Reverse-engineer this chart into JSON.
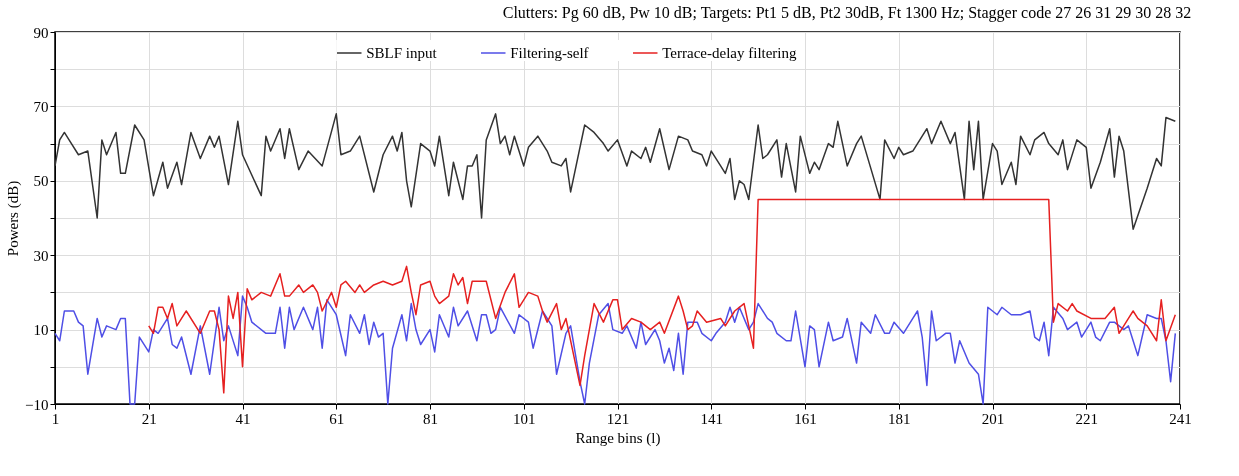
{
  "chart_data": {
    "type": "line",
    "title": "Clutters: Pg 60 dB, Pw 10 dB; Targets: Pt1 5 dB, Pt2 30dB, Ft 1300 Hz; Stagger code 27 26 31 29 30 28 32",
    "xlabel": "Range bins (l)",
    "ylabel": "Powers (dB)",
    "xlim": [
      1,
      241
    ],
    "xticks": [
      1,
      21,
      41,
      61,
      81,
      101,
      121,
      141,
      161,
      181,
      201,
      221,
      241
    ],
    "ylim": [
      -10,
      90
    ],
    "yticks": [
      -10,
      {
        "value": 0,
        "label": null
      },
      10,
      {
        "value": 20,
        "label": null
      },
      30,
      {
        "value": 40,
        "label": null
      },
      50,
      {
        "value": 60,
        "label": null
      },
      70,
      {
        "value": 80,
        "label": null
      },
      90
    ],
    "grid": true,
    "legend": "top",
    "line_style": "solid",
    "marker": "none",
    "series": [
      {
        "name": "SBLF input",
        "color": "#333333",
        "x": [
          1,
          2,
          3,
          4,
          6,
          8,
          10,
          11,
          12,
          14,
          15,
          16,
          18,
          20,
          22,
          24,
          25,
          27,
          28,
          30,
          32,
          34,
          35,
          36,
          38,
          40,
          41,
          45,
          46,
          47,
          49,
          50,
          51,
          53,
          55,
          58,
          61,
          62,
          64,
          66,
          69,
          71,
          73,
          74,
          75,
          76,
          77,
          79,
          81,
          82,
          83,
          85,
          86,
          88,
          89,
          90,
          91,
          92,
          93,
          95,
          96,
          97,
          98,
          99,
          101,
          102,
          104,
          106,
          107,
          109,
          110,
          111,
          114,
          116,
          118,
          119,
          121,
          123,
          124,
          126,
          127,
          128,
          130,
          132,
          134,
          136,
          137,
          139,
          140,
          141,
          143,
          144,
          145,
          146,
          147,
          148,
          149,
          151,
          152,
          153,
          155,
          156,
          157,
          159,
          160,
          162,
          163,
          164,
          166,
          167,
          168,
          170,
          172,
          173,
          177,
          178,
          180,
          181,
          182,
          184,
          186,
          187,
          188,
          190,
          192,
          193,
          195,
          196,
          197,
          198,
          199,
          201,
          202,
          203,
          205,
          206,
          207,
          209,
          210,
          212,
          213,
          215,
          216,
          217,
          219,
          221,
          222,
          224,
          226,
          227,
          228,
          229,
          231,
          234,
          236,
          237,
          238,
          240
        ],
        "values": [
          54,
          61,
          63,
          61,
          57,
          58,
          40,
          61,
          57,
          63,
          52,
          52,
          65,
          61,
          46,
          55,
          48,
          55,
          49,
          63,
          56,
          62,
          59,
          62,
          49,
          66,
          57,
          46,
          62,
          58,
          64,
          56,
          64,
          53,
          58,
          54,
          68,
          57,
          58,
          62,
          47,
          57,
          62,
          58,
          63,
          50,
          43,
          60,
          58,
          54,
          62,
          46,
          55,
          45,
          54,
          54,
          57,
          40,
          61,
          68,
          60,
          62,
          57,
          62,
          54,
          59,
          62,
          58,
          55,
          54,
          56,
          47,
          65,
          63,
          60,
          58,
          61,
          54,
          58,
          56,
          59,
          55,
          64,
          53,
          62,
          61,
          58,
          57,
          54,
          58,
          54,
          52,
          56,
          45,
          50,
          49,
          45,
          65,
          56,
          57,
          61,
          51,
          60,
          47,
          62,
          52,
          55,
          53,
          60,
          59,
          66,
          54,
          60,
          62,
          45,
          61,
          56,
          59,
          57,
          58,
          62,
          64,
          60,
          66,
          60,
          63,
          45,
          66,
          53,
          66,
          45,
          60,
          58,
          49,
          55,
          49,
          62,
          57,
          61,
          63,
          60,
          57,
          61,
          53,
          61,
          59,
          48,
          55,
          64,
          51,
          62,
          58,
          37,
          48,
          56,
          54,
          67,
          66
        ]
      },
      {
        "name": "Filtering-self",
        "color": "#4f4fe6",
        "x": [
          1,
          2,
          3,
          5,
          6,
          7,
          8,
          10,
          11,
          12,
          14,
          15,
          16,
          17,
          18,
          19,
          21,
          22,
          23,
          25,
          26,
          27,
          28,
          30,
          32,
          34,
          36,
          37,
          38,
          40,
          41,
          42,
          43,
          46,
          48,
          49,
          50,
          51,
          52,
          54,
          56,
          57,
          58,
          59,
          61,
          63,
          64,
          66,
          67,
          68,
          69,
          70,
          71,
          72,
          73,
          75,
          76,
          77,
          78,
          79,
          81,
          82,
          83,
          85,
          86,
          87,
          89,
          91,
          92,
          93,
          94,
          95,
          96,
          99,
          100,
          102,
          103,
          105,
          107,
          108,
          110,
          111,
          113,
          114,
          115,
          117,
          119,
          120,
          122,
          123,
          125,
          126,
          127,
          129,
          130,
          131,
          132,
          133,
          134,
          135,
          136,
          138,
          139,
          141,
          142,
          144,
          145,
          146,
          147,
          149,
          150,
          151,
          153,
          154,
          155,
          157,
          158,
          159,
          161,
          162,
          163,
          164,
          166,
          167,
          169,
          170,
          172,
          173,
          175,
          176,
          178,
          179,
          180,
          182,
          184,
          185,
          186,
          187,
          188,
          189,
          191,
          192,
          193,
          194,
          196,
          198,
          199,
          200,
          201,
          202,
          203,
          205,
          207,
          209,
          210,
          211,
          212,
          213,
          214,
          216,
          217,
          219,
          220,
          222,
          223,
          224,
          226,
          227,
          229,
          230,
          231,
          232,
          234,
          236,
          237,
          238,
          239,
          240
        ],
        "values": [
          9,
          7,
          15,
          15,
          12,
          11,
          -2,
          13,
          8,
          11,
          10,
          13,
          13,
          -10,
          -10,
          8,
          4,
          10,
          9,
          13,
          6,
          5,
          8,
          -2,
          11,
          -2,
          16,
          7,
          11,
          3,
          19,
          16,
          12,
          9,
          9,
          16,
          5,
          16,
          10,
          16,
          10,
          16,
          5,
          18,
          14,
          3,
          14,
          9,
          14,
          6,
          12,
          8,
          9,
          -10,
          5,
          14,
          7,
          17,
          10,
          6,
          10,
          4,
          14,
          8,
          16,
          11,
          15,
          7,
          14,
          14,
          9,
          10,
          16,
          9,
          14,
          12,
          5,
          15,
          11,
          -2,
          9,
          11,
          -4,
          -10,
          1,
          14,
          17,
          10,
          9,
          11,
          5,
          12,
          6,
          10,
          7,
          1,
          5,
          -1,
          9,
          -2,
          12,
          12,
          9,
          7,
          9,
          12,
          16,
          12,
          16,
          10,
          12,
          17,
          13,
          12,
          9,
          7,
          7,
          15,
          0,
          11,
          10,
          0,
          12,
          7,
          8,
          13,
          1,
          12,
          9,
          14,
          9,
          9,
          12,
          9,
          13,
          15,
          8,
          -5,
          15,
          7,
          9,
          9,
          1,
          7,
          1,
          -2,
          -10,
          16,
          15,
          14,
          16,
          14,
          14,
          15,
          8,
          7,
          12,
          3,
          16,
          13,
          10,
          12,
          8,
          12,
          8,
          7,
          12,
          12,
          10,
          11,
          7,
          3,
          14,
          13,
          13,
          7,
          -4,
          9
        ]
      },
      {
        "name": "Terrace-delay filtering",
        "color": "#e62020",
        "x": [
          21,
          22,
          23,
          24,
          25,
          26,
          27,
          28,
          29,
          32,
          34,
          35,
          36,
          37,
          38,
          39,
          40,
          41,
          42,
          43,
          45,
          47,
          49,
          50,
          51,
          53,
          54,
          56,
          57,
          58,
          60,
          61,
          62,
          63,
          65,
          66,
          67,
          69,
          71,
          73,
          75,
          76,
          77,
          78,
          79,
          81,
          82,
          83,
          85,
          86,
          87,
          88,
          89,
          90,
          93,
          95,
          97,
          99,
          100,
          102,
          104,
          105,
          106,
          108,
          109,
          110,
          113,
          114,
          115,
          116,
          118,
          120,
          121,
          122,
          124,
          126,
          128,
          130,
          131,
          134,
          135,
          136,
          137,
          138,
          140,
          143,
          144,
          146,
          148,
          150,
          151,
          160,
          170,
          180,
          190,
          200,
          213,
          214,
          215,
          217,
          218,
          219,
          222,
          223,
          225,
          227,
          228,
          230,
          231,
          232,
          234,
          236,
          237,
          238,
          240
        ],
        "values": [
          11,
          9,
          16,
          16,
          13,
          17,
          11,
          13,
          15,
          9,
          15,
          15,
          10,
          -7,
          19,
          13,
          20,
          0,
          21,
          18,
          20,
          19,
          25,
          19,
          19,
          22,
          20,
          22,
          20,
          15,
          20,
          16,
          22,
          23,
          20,
          22,
          20,
          22,
          23,
          22,
          23,
          27,
          20,
          14,
          22,
          23,
          19,
          17,
          19,
          25,
          22,
          24,
          17,
          23,
          23,
          13,
          20,
          25,
          16,
          20,
          19,
          15,
          12,
          17,
          10,
          13,
          -5,
          3,
          10,
          17,
          12,
          18,
          18,
          10,
          13,
          12,
          10,
          12,
          9,
          19,
          15,
          10,
          11,
          15,
          12,
          13,
          11,
          15,
          17,
          5,
          45,
          45,
          45,
          45,
          45,
          45,
          45,
          12,
          17,
          15,
          17,
          15,
          13,
          13,
          13,
          16,
          9,
          13,
          15,
          13,
          11,
          7,
          18,
          7,
          14
        ]
      }
    ]
  }
}
